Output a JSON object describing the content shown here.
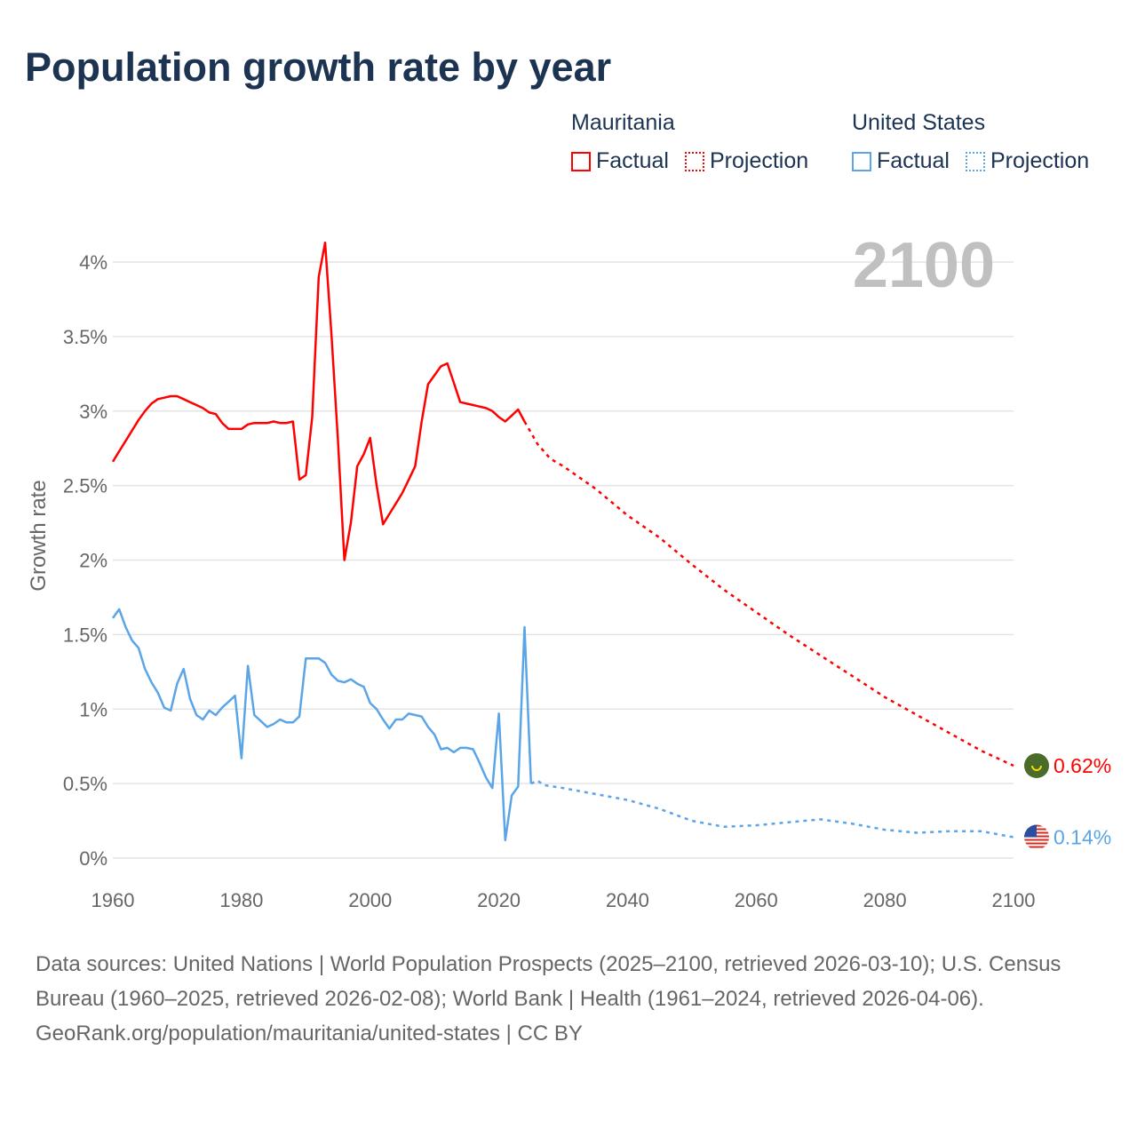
{
  "title": "Population growth rate by year",
  "legend": {
    "groups": [
      {
        "name": "Mauritania",
        "color": "#ff0000",
        "factual": "Factual",
        "projection": "Projection"
      },
      {
        "name": "United States",
        "color": "#5aa5e8",
        "factual": "Factual",
        "projection": "Projection"
      }
    ]
  },
  "year_label": "2100",
  "footer": {
    "sources": "Data sources: United Nations | World Population Prospects (2025–2100, retrieved 2026-03-10); U.S. Census Bureau (1960–2025, retrieved 2026-02-08); World Bank | Health (1961–2024, retrieved 2026-04-06).",
    "credit": "GeoRank.org/population/mauritania/united-states | CC BY"
  },
  "chart_data": {
    "type": "line",
    "title": "Population growth rate by year",
    "xlabel": "",
    "ylabel": "Growth rate",
    "xlim": [
      1960,
      2100
    ],
    "ylim": [
      0,
      4.2
    ],
    "x_ticks": [
      "1960",
      "1980",
      "2000",
      "2020",
      "2040",
      "2060",
      "2080",
      "2100"
    ],
    "x_tick_values": [
      1960,
      1980,
      2000,
      2020,
      2040,
      2060,
      2080,
      2100
    ],
    "y_ticks": [
      "0%",
      "0.5%",
      "1%",
      "1.5%",
      "2%",
      "2.5%",
      "3%",
      "3.5%",
      "4%"
    ],
    "y_tick_values": [
      0,
      0.5,
      1,
      1.5,
      2,
      2.5,
      3,
      3.5,
      4
    ],
    "grid": true,
    "legend_position": "top-right",
    "series": [
      {
        "name": "Mauritania",
        "color": "#ff0000",
        "end_label": "0.62%",
        "factual": {
          "x": [
            1960,
            1961,
            1962,
            1963,
            1964,
            1965,
            1966,
            1967,
            1968,
            1969,
            1970,
            1971,
            1972,
            1973,
            1974,
            1975,
            1976,
            1977,
            1978,
            1979,
            1980,
            1981,
            1982,
            1983,
            1984,
            1985,
            1986,
            1987,
            1988,
            1989,
            1990,
            1991,
            1992,
            1993,
            1994,
            1995,
            1996,
            1997,
            1998,
            1999,
            2000,
            2001,
            2002,
            2003,
            2004,
            2005,
            2006,
            2007,
            2008,
            2009,
            2010,
            2011,
            2012,
            2013,
            2014,
            2015,
            2016,
            2017,
            2018,
            2019,
            2020,
            2021,
            2022,
            2023,
            2024
          ],
          "y": [
            2.66,
            2.73,
            2.8,
            2.87,
            2.94,
            3.0,
            3.05,
            3.08,
            3.09,
            3.1,
            3.1,
            3.08,
            3.06,
            3.04,
            3.02,
            2.99,
            2.98,
            2.92,
            2.88,
            2.88,
            2.88,
            2.91,
            2.92,
            2.92,
            2.92,
            2.93,
            2.92,
            2.92,
            2.93,
            2.54,
            2.57,
            2.96,
            3.9,
            4.13,
            3.5,
            2.8,
            2.0,
            2.25,
            2.63,
            2.71,
            2.82,
            2.5,
            2.24,
            2.31,
            2.38,
            2.45,
            2.54,
            2.63,
            2.93,
            3.18,
            3.24,
            3.3,
            3.32,
            3.19,
            3.06,
            3.05,
            3.04,
            3.03,
            3.02,
            3.0,
            2.96,
            2.93,
            2.97,
            3.01,
            2.93
          ]
        },
        "projection": {
          "x": [
            2024,
            2026,
            2028,
            2030,
            2035,
            2040,
            2045,
            2050,
            2055,
            2060,
            2065,
            2070,
            2075,
            2080,
            2085,
            2090,
            2095,
            2100
          ],
          "y": [
            2.93,
            2.78,
            2.68,
            2.63,
            2.48,
            2.3,
            2.15,
            1.97,
            1.8,
            1.65,
            1.5,
            1.36,
            1.22,
            1.08,
            0.96,
            0.84,
            0.72,
            0.62
          ]
        }
      },
      {
        "name": "United States",
        "color": "#5aa5e8",
        "end_label": "0.14%",
        "factual": {
          "x": [
            1960,
            1961,
            1962,
            1963,
            1964,
            1965,
            1966,
            1967,
            1968,
            1969,
            1970,
            1971,
            1972,
            1973,
            1974,
            1975,
            1976,
            1977,
            1978,
            1979,
            1980,
            1981,
            1982,
            1983,
            1984,
            1985,
            1986,
            1987,
            1988,
            1989,
            1990,
            1991,
            1992,
            1993,
            1994,
            1995,
            1996,
            1997,
            1998,
            1999,
            2000,
            2001,
            2002,
            2003,
            2004,
            2005,
            2006,
            2007,
            2008,
            2009,
            2010,
            2011,
            2012,
            2013,
            2014,
            2015,
            2016,
            2017,
            2018,
            2019,
            2020,
            2021,
            2022,
            2023,
            2024,
            2025
          ],
          "y": [
            1.61,
            1.67,
            1.55,
            1.46,
            1.41,
            1.27,
            1.18,
            1.11,
            1.01,
            0.99,
            1.17,
            1.27,
            1.07,
            0.96,
            0.93,
            0.99,
            0.96,
            1.01,
            1.05,
            1.09,
            0.67,
            1.29,
            0.96,
            0.92,
            0.88,
            0.9,
            0.93,
            0.91,
            0.91,
            0.95,
            1.34,
            1.34,
            1.34,
            1.31,
            1.23,
            1.19,
            1.18,
            1.2,
            1.17,
            1.15,
            1.04,
            1.0,
            0.93,
            0.87,
            0.93,
            0.93,
            0.97,
            0.96,
            0.95,
            0.88,
            0.83,
            0.73,
            0.74,
            0.71,
            0.74,
            0.74,
            0.73,
            0.64,
            0.54,
            0.47,
            0.97,
            0.12,
            0.42,
            0.48,
            1.55,
            0.5
          ]
        },
        "projection": {
          "x": [
            2025,
            2026,
            2027,
            2030,
            2035,
            2040,
            2045,
            2050,
            2055,
            2060,
            2065,
            2070,
            2075,
            2080,
            2085,
            2090,
            2095,
            2100
          ],
          "y": [
            0.5,
            0.52,
            0.49,
            0.47,
            0.43,
            0.39,
            0.33,
            0.25,
            0.21,
            0.22,
            0.24,
            0.26,
            0.23,
            0.19,
            0.17,
            0.18,
            0.18,
            0.14
          ]
        }
      }
    ]
  }
}
